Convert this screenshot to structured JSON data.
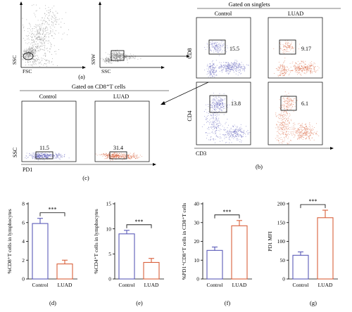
{
  "flow": {
    "panel_a": {
      "letter": "(a)",
      "plot1": {
        "x_label": "FSC",
        "y_label": "SSC"
      },
      "plot2": {
        "x_label": "SSC",
        "y_label": "SSW"
      }
    },
    "panel_b": {
      "letter": "(b)",
      "header": "Gated on singlets",
      "col_control": "Control",
      "col_luad": "LUAD",
      "row1_y_label": "CD8",
      "row2_y_label": "CD4",
      "x_label": "CD3",
      "gate_values": {
        "cd8_control": "15.5",
        "cd8_luad": "9.17",
        "cd4_control": "13.8",
        "cd4_luad": "6.1"
      }
    },
    "panel_c": {
      "letter": "(c)",
      "header": "Gated on CD8⁺T cells",
      "col_control": "Control",
      "col_luad": "LUAD",
      "y_label": "SSC",
      "x_label": "PD1",
      "gate_values": {
        "control": "11.5",
        "luad": "31.4"
      }
    }
  },
  "chart_data": [
    {
      "type": "bar",
      "letter": "(d)",
      "ylabel": "%CD8⁺T cells in lymphocytes",
      "categories": [
        "Control",
        "LUAD"
      ],
      "values": [
        5.9,
        1.6
      ],
      "errors": [
        0.55,
        0.4
      ],
      "ylim": [
        0,
        8
      ],
      "yticks": [
        "0",
        "2",
        "4",
        "6",
        "8"
      ],
      "significance": "***"
    },
    {
      "type": "bar",
      "letter": "(e)",
      "ylabel": "%CD4⁺T cells in lymphocytes",
      "categories": [
        "Control",
        "LUAD"
      ],
      "values": [
        9.0,
        3.3
      ],
      "errors": [
        0.7,
        0.8
      ],
      "ylim": [
        0,
        15
      ],
      "yticks": [
        "0",
        "5",
        "10",
        "15"
      ],
      "significance": "***"
    },
    {
      "type": "bar",
      "letter": "(f)",
      "ylabel": "%PD1⁺CD8⁺T cells in CD8⁺T cells",
      "categories": [
        "Control",
        "LUAD"
      ],
      "values": [
        15.2,
        28.3
      ],
      "errors": [
        1.8,
        2.8
      ],
      "ylim": [
        0,
        40
      ],
      "yticks": [
        "0",
        "10",
        "20",
        "30",
        "40"
      ],
      "significance": "***"
    },
    {
      "type": "bar",
      "letter": "(g)",
      "ylabel": "PD1 MFI",
      "categories": [
        "Control",
        "LUAD"
      ],
      "values": [
        63,
        163
      ],
      "errors": [
        9,
        20
      ],
      "ylim": [
        0,
        200
      ],
      "yticks": [
        "0",
        "50",
        "100",
        "150",
        "200"
      ],
      "significance": "***"
    }
  ],
  "colors": {
    "control": "#5b5bb8",
    "luad": "#d9603b",
    "scatter_gray": "#7a7a7a",
    "axis": "#000000"
  }
}
